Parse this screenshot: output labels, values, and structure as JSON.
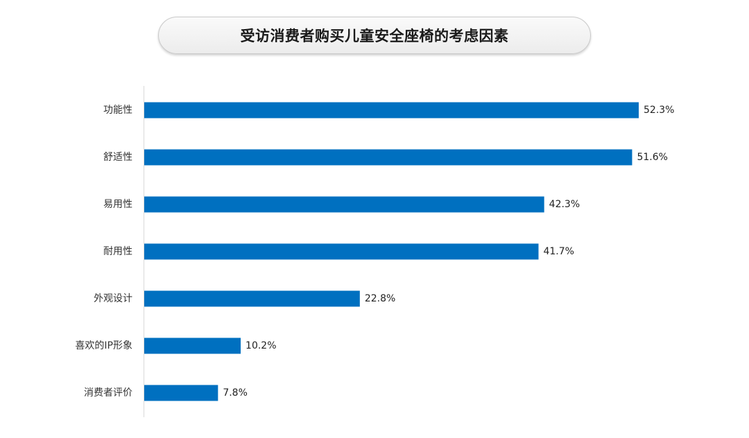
{
  "chart_data": {
    "type": "bar",
    "orientation": "horizontal",
    "title": "受访消费者购买儿童安全座椅的考虑因素",
    "categories": [
      "功能性",
      "舒适性",
      "易用性",
      "耐用性",
      "外观设计",
      "喜欢的IP形象",
      "消费者评价"
    ],
    "values": [
      52.3,
      51.6,
      42.3,
      41.7,
      22.8,
      10.2,
      7.8
    ],
    "data_labels": [
      "52.3%",
      "51.6%",
      "42.3%",
      "41.7%",
      "22.8%",
      "10.2%",
      "7.8%"
    ],
    "unit": "%",
    "xlim": [
      0,
      52.3
    ],
    "grid": false,
    "legend": "none",
    "bar_color": "#0070C0"
  }
}
